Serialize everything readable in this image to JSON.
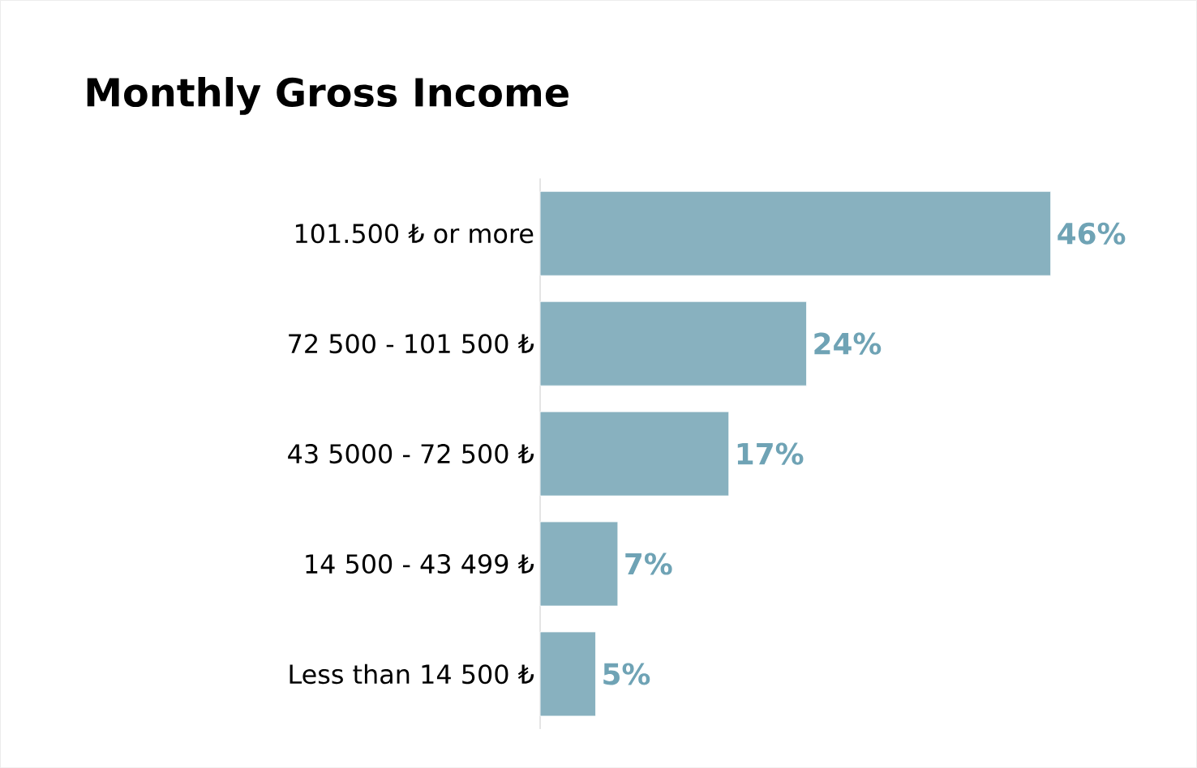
{
  "chart_data": {
    "type": "bar",
    "orientation": "horizontal",
    "title": "Monthly Gross Income",
    "categories": [
      "101.500 ₺ or more",
      "72 500 - 101 500 ₺",
      "43 5000 - 72 500 ₺",
      "14 500 - 43 499 ₺",
      "Less than 14 500 ₺"
    ],
    "values": [
      46,
      24,
      17,
      7,
      5
    ],
    "value_labels": [
      "46%",
      "24%",
      "17%",
      "7%",
      "5%"
    ],
    "color": "#88b1bf"
  }
}
